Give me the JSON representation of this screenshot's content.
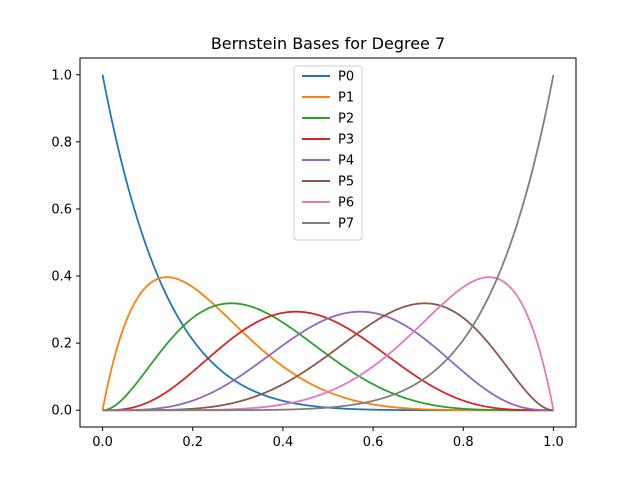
{
  "chart_data": {
    "type": "line",
    "title": "Bernstein Bases for Degree 7",
    "xlabel": "",
    "ylabel": "",
    "degree": 7,
    "xlim": [
      -0.05,
      1.05
    ],
    "ylim": [
      -0.05,
      1.05
    ],
    "xticks": [
      0.0,
      0.2,
      0.4,
      0.6,
      0.8,
      1.0
    ],
    "xtick_labels": [
      "0.0",
      "0.2",
      "0.4",
      "0.6",
      "0.8",
      "1.0"
    ],
    "yticks": [
      0.0,
      0.2,
      0.4,
      0.6,
      0.8,
      1.0
    ],
    "ytick_labels": [
      "0.0",
      "0.2",
      "0.4",
      "0.6",
      "0.8",
      "1.0"
    ],
    "grid": false,
    "legend_position": "top-center",
    "series": [
      {
        "name": "P0",
        "index": 0,
        "color": "#1f77b4"
      },
      {
        "name": "P1",
        "index": 1,
        "color": "#ff7f0e"
      },
      {
        "name": "P2",
        "index": 2,
        "color": "#2ca02c"
      },
      {
        "name": "P3",
        "index": 3,
        "color": "#d62728"
      },
      {
        "name": "P4",
        "index": 4,
        "color": "#9467bd"
      },
      {
        "name": "P5",
        "index": 5,
        "color": "#8c564b"
      },
      {
        "name": "P6",
        "index": 6,
        "color": "#e377c2"
      },
      {
        "name": "P7",
        "index": 7,
        "color": "#7f7f7f"
      }
    ]
  }
}
